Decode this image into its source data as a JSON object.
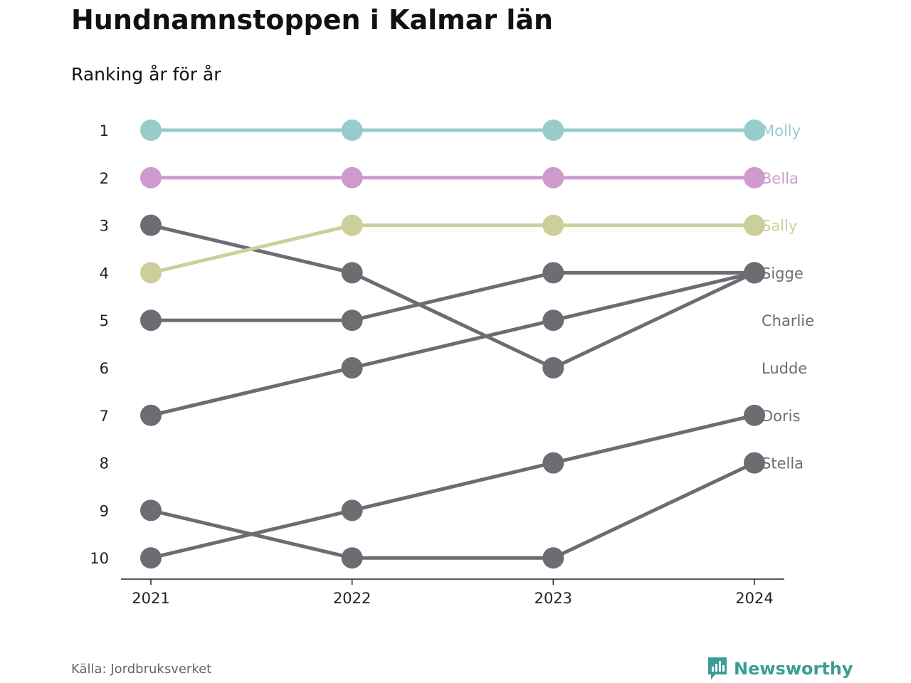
{
  "header": {
    "title": "Hundnamnstoppen i Kalmar län",
    "subtitle": "Ranking år för år"
  },
  "footer": {
    "source": "Källa: Jordbruksverket",
    "brand": "Newsworthy",
    "brand_icon": "bar-chart-speech-bubble-icon",
    "brand_color": "#3a9d96"
  },
  "chart_data": {
    "type": "line",
    "subtype": "bump",
    "x": [
      "2021",
      "2022",
      "2023",
      "2024"
    ],
    "y_ticks": [
      1,
      2,
      3,
      4,
      5,
      6,
      7,
      8,
      9,
      10
    ],
    "ylim": [
      10,
      1
    ],
    "y_reversed": true,
    "grid": false,
    "legend": "direct labels at line ends (right)",
    "series": [
      {
        "name": "Molly",
        "values": [
          1,
          1,
          1,
          1
        ],
        "color": "#98cccb"
      },
      {
        "name": "Bella",
        "values": [
          2,
          2,
          2,
          2
        ],
        "color": "#cf9acd"
      },
      {
        "name": "Sally",
        "values": [
          4,
          3,
          3,
          3
        ],
        "color": "#cdcf9a"
      },
      {
        "name": "Sigge",
        "values": [
          3,
          4,
          6,
          4
        ],
        "color": "#6d6c72"
      },
      {
        "name": "Charlie",
        "values": [
          5,
          5,
          4,
          4
        ],
        "color": "#6d6c72"
      },
      {
        "name": "Ludde",
        "values": [
          7,
          6,
          5,
          4
        ],
        "color": "#6d6c72"
      },
      {
        "name": "Doris",
        "values": [
          10,
          9,
          8,
          7
        ],
        "color": "#6d6c72"
      },
      {
        "name": "Stella",
        "values": [
          9,
          10,
          10,
          8
        ],
        "color": "#6d6c72"
      }
    ],
    "label_ranks": [
      1,
      2,
      3,
      4,
      5,
      6,
      7,
      8
    ]
  }
}
